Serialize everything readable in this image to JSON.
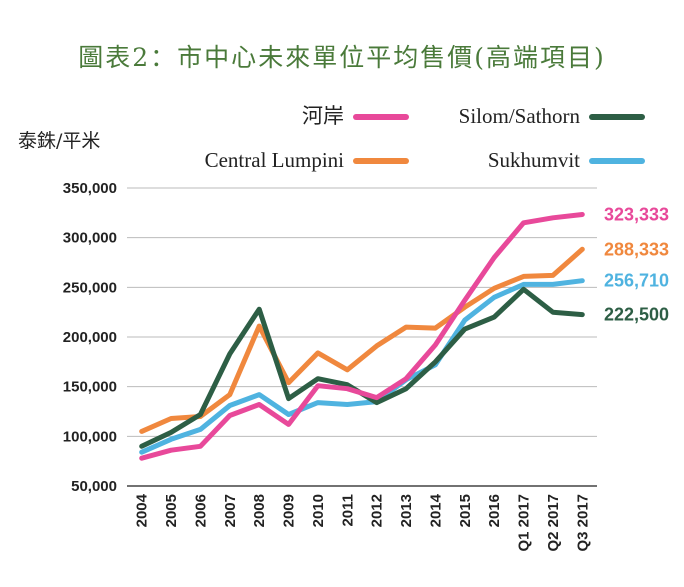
{
  "chart_data": {
    "type": "line",
    "title": "圖表2：市中心未來單位平均售價(高端項目)",
    "ylabel": "泰銖/平米",
    "xlabel": "",
    "ylim": [
      50000,
      350000
    ],
    "yticks": [
      "350,000",
      "300,000",
      "250,000",
      "200,000",
      "150,000",
      "100,000",
      "50,000"
    ],
    "yticks_values": [
      350000,
      300000,
      250000,
      200000,
      150000,
      100000,
      50000
    ],
    "categories": [
      "2004",
      "2005",
      "2006",
      "2007",
      "2008",
      "2009",
      "2010",
      "2011",
      "2012",
      "2013",
      "2014",
      "2015",
      "2016",
      "Q1 2017",
      "Q2 2017",
      "Q3 2017"
    ],
    "grid": "horizontal",
    "legend_position": "top",
    "series": [
      {
        "name": "河岸",
        "color": "#e8499a",
        "end_label": "323,333",
        "values": [
          78000,
          86000,
          90000,
          121000,
          132000,
          112000,
          151000,
          148000,
          139000,
          158000,
          192000,
          237000,
          280000,
          315000,
          320000,
          323333
        ]
      },
      {
        "name": "Central Lumpini",
        "color": "#f0883e",
        "end_label": "288,333",
        "values": [
          105000,
          118000,
          120000,
          142000,
          211000,
          154000,
          184000,
          167000,
          191000,
          210000,
          209000,
          230000,
          249000,
          261000,
          262000,
          288333
        ]
      },
      {
        "name": "Silom/Sathorn",
        "color": "#2d5e45",
        "end_label": "222,500",
        "values": [
          90000,
          104000,
          122000,
          183000,
          228000,
          138000,
          158000,
          152000,
          134000,
          148000,
          175000,
          208000,
          220000,
          248000,
          225000,
          222500
        ]
      },
      {
        "name": "Sukhumvit",
        "color": "#4fb3e0",
        "end_label": "256,710",
        "values": [
          84000,
          97000,
          107000,
          131000,
          142000,
          122000,
          134000,
          132000,
          135000,
          157000,
          172000,
          217000,
          240000,
          253000,
          253000,
          256710
        ]
      }
    ]
  }
}
